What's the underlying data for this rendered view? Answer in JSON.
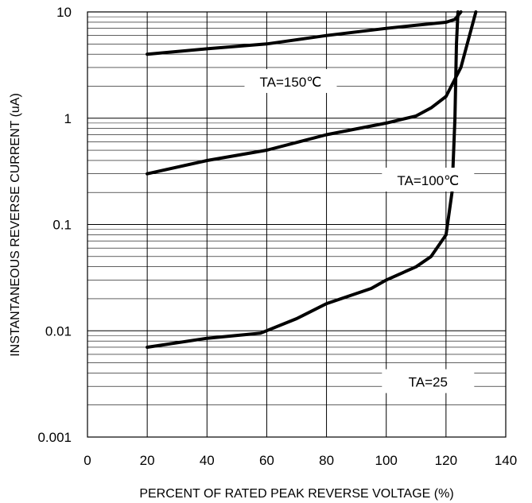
{
  "chart_data": {
    "type": "line",
    "title": "",
    "xlabel": "PERCENT OF RATED PEAK REVERSE VOLTAGE (%)",
    "ylabel": "INSTANTANEOUS REVERSE CURRENT (uA)",
    "xlim": [
      0,
      140
    ],
    "ylim": [
      0.001,
      10
    ],
    "yscale": "log",
    "grid": true,
    "x_ticks": [
      "0",
      "20",
      "40",
      "60",
      "80",
      "100",
      "120",
      "140"
    ],
    "y_ticks": [
      "0.001",
      "0.01",
      "0.1",
      "1",
      "10"
    ],
    "series": [
      {
        "name": "TA=150℃",
        "points": [
          [
            20,
            4.0
          ],
          [
            40,
            4.5
          ],
          [
            60,
            5.0
          ],
          [
            80,
            6.0
          ],
          [
            100,
            7.0
          ],
          [
            110,
            7.5
          ],
          [
            120,
            8.0
          ],
          [
            123,
            8.5
          ],
          [
            125,
            10.0
          ]
        ]
      },
      {
        "name": "TA=100℃",
        "points": [
          [
            20,
            0.3
          ],
          [
            40,
            0.4
          ],
          [
            60,
            0.5
          ],
          [
            80,
            0.7
          ],
          [
            100,
            0.9
          ],
          [
            110,
            1.05
          ],
          [
            115,
            1.25
          ],
          [
            120,
            1.6
          ],
          [
            125,
            3.0
          ],
          [
            130,
            10.0
          ]
        ]
      },
      {
        "name": "TA=25",
        "points": [
          [
            20,
            0.007
          ],
          [
            40,
            0.0085
          ],
          [
            58,
            0.0095
          ],
          [
            70,
            0.013
          ],
          [
            80,
            0.018
          ],
          [
            95,
            0.025
          ],
          [
            100,
            0.03
          ],
          [
            110,
            0.04
          ],
          [
            115,
            0.05
          ],
          [
            120,
            0.08
          ],
          [
            122,
            0.2
          ],
          [
            123,
            1.0
          ],
          [
            123.5,
            5.0
          ],
          [
            124,
            10.0
          ]
        ]
      }
    ],
    "annotations": [
      {
        "text": "TA=150℃",
        "x": 68,
        "y": 2.2
      },
      {
        "text": "TA=100℃",
        "x": 114,
        "y": 0.26
      },
      {
        "text": "TA=25",
        "x": 114,
        "y": 0.0033
      }
    ]
  }
}
